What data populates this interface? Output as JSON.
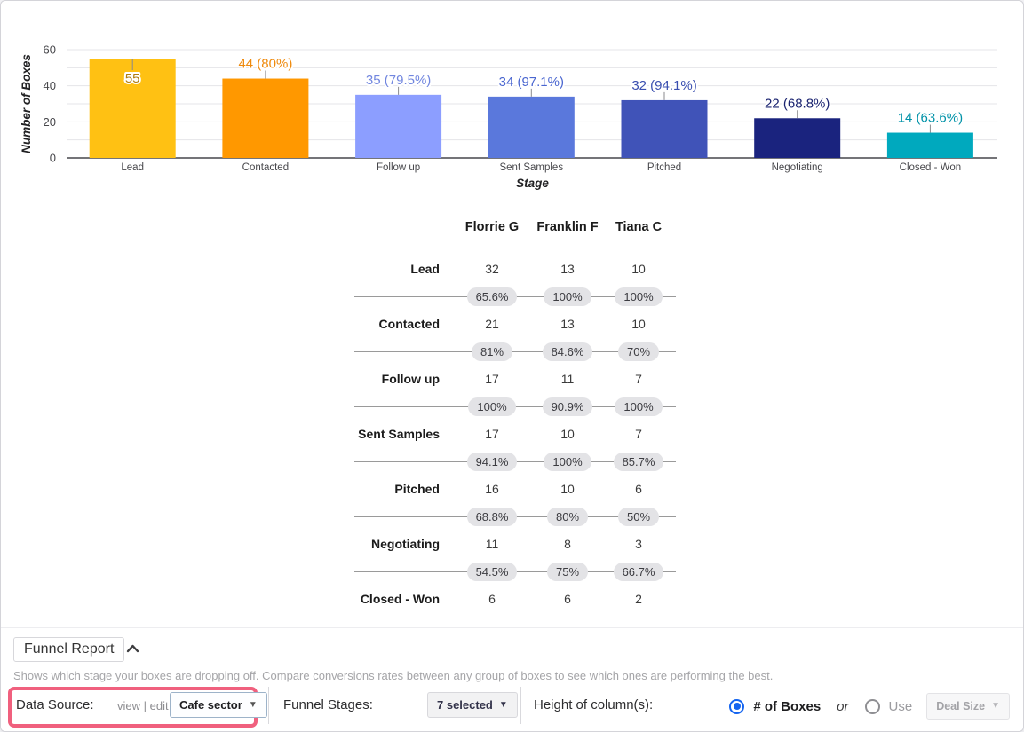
{
  "chart_data": {
    "type": "bar",
    "title": "",
    "xlabel": "Stage",
    "ylabel": "Number of Boxes",
    "ylim": [
      0,
      60
    ],
    "yticks": [
      0,
      20,
      40,
      60
    ],
    "grid_step": 10,
    "categories": [
      "Lead",
      "Contacted",
      "Follow up",
      "Sent Samples",
      "Pitched",
      "Negotiating",
      "Closed - Won"
    ],
    "values": [
      55,
      44,
      35,
      34,
      32,
      22,
      14
    ],
    "bar_labels": [
      "55",
      "44 (80%)",
      "35 (79.5%)",
      "34 (97.1%)",
      "32 (94.1%)",
      "22 (68.8%)",
      "14 (63.6%)"
    ],
    "bar_colors": [
      "#FFC113",
      "#FF9800",
      "#8C9EFF",
      "#5A78DC",
      "#4053B8",
      "#1A237E",
      "#00A9BE"
    ],
    "label_colors": [
      "#B07D10",
      "#EF8A0C",
      "#7186DF",
      "#4A66D0",
      "#3A4FB0",
      "#1A2370",
      "#0092A8"
    ],
    "legend": null,
    "grid": true
  },
  "matrix": {
    "columns": [
      "Florrie G",
      "Franklin F",
      "Tiana C"
    ],
    "rows": [
      {
        "stage": "Lead",
        "values": [
          "32",
          "13",
          "10"
        ],
        "conversions": [
          "65.6%",
          "100%",
          "100%"
        ]
      },
      {
        "stage": "Contacted",
        "values": [
          "21",
          "13",
          "10"
        ],
        "conversions": [
          "81%",
          "84.6%",
          "70%"
        ]
      },
      {
        "stage": "Follow up",
        "values": [
          "17",
          "11",
          "7"
        ],
        "conversions": [
          "100%",
          "90.9%",
          "100%"
        ]
      },
      {
        "stage": "Sent Samples",
        "values": [
          "17",
          "10",
          "7"
        ],
        "conversions": [
          "94.1%",
          "100%",
          "85.7%"
        ]
      },
      {
        "stage": "Pitched",
        "values": [
          "16",
          "10",
          "6"
        ],
        "conversions": [
          "68.8%",
          "80%",
          "50%"
        ]
      },
      {
        "stage": "Negotiating",
        "values": [
          "11",
          "8",
          "3"
        ],
        "conversions": [
          "54.5%",
          "75%",
          "66.7%"
        ]
      },
      {
        "stage": "Closed - Won",
        "values": [
          "6",
          "6",
          "2"
        ],
        "conversions": []
      }
    ]
  },
  "footer": {
    "title": "Funnel Report",
    "description": "Shows which stage your boxes are dropping off. Compare conversions rates between any group of boxes to see which ones are performing the best.",
    "data_source": {
      "label": "Data Source:",
      "view_link": "view",
      "separator": "|",
      "edit_link": "edit",
      "dropdown_value": "Cafe sector",
      "highlight_color": "#F0607E"
    },
    "funnel_stages": {
      "label": "Funnel Stages:",
      "dropdown_value": "7 selected"
    },
    "height_of_columns": {
      "label": "Height of column(s):",
      "option_boxes": "# of Boxes",
      "or_text": "or",
      "option_use": "Use",
      "dropdown_value": "Deal Size",
      "selected_option": "# of Boxes",
      "radio_color": "#1565F0"
    }
  }
}
